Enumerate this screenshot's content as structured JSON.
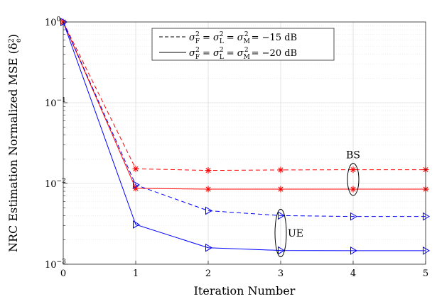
{
  "chart_data": {
    "type": "line",
    "xlabel": "Iteration Number",
    "ylabel": "NRC Estimation Normalized MSE (δ",
    "ylabel_sup": "2",
    "ylabel_sub": "e",
    "ylabel_close": ")",
    "x": [
      0,
      1,
      2,
      3,
      4,
      5
    ],
    "xlim": [
      0,
      5
    ],
    "ylim": [
      0.001,
      1
    ],
    "yscale": "log",
    "grid": true,
    "x_ticks": [
      "0",
      "1",
      "2",
      "3",
      "4",
      "5"
    ],
    "y_ticks": [
      {
        "base": "10",
        "exp": "0",
        "value": 1
      },
      {
        "base": "10",
        "exp": "−1",
        "value": 0.1
      },
      {
        "base": "10",
        "exp": "−2",
        "value": 0.01
      },
      {
        "base": "10",
        "exp": "−3",
        "value": 0.001
      }
    ],
    "series": [
      {
        "id": "bs-15",
        "group": "BS",
        "noise": "-15 dB",
        "color": "#ff0000",
        "style": "dashed",
        "marker": "star",
        "values": [
          1.0,
          0.0152,
          0.0145,
          0.0147,
          0.0148,
          0.0148
        ]
      },
      {
        "id": "bs-20",
        "group": "BS",
        "noise": "-20 dB",
        "color": "#ff0000",
        "style": "solid",
        "marker": "star",
        "values": [
          1.0,
          0.0087,
          0.0085,
          0.0085,
          0.0085,
          0.0085
        ]
      },
      {
        "id": "ue-15",
        "group": "UE",
        "noise": "-15 dB",
        "color": "#0000ff",
        "style": "dashed",
        "marker": "triangle-right",
        "values": [
          1.0,
          0.0096,
          0.0046,
          0.004,
          0.0039,
          0.0039
        ]
      },
      {
        "id": "ue-20",
        "group": "UE",
        "noise": "-20 dB",
        "color": "#0000ff",
        "style": "solid",
        "marker": "triangle-right",
        "values": [
          1.0,
          0.0031,
          0.0016,
          0.00148,
          0.00147,
          0.00147
        ]
      }
    ],
    "legend": {
      "placement": "top-right",
      "entries": [
        {
          "style": "dashed",
          "value": "= −15 dB"
        },
        {
          "style": "solid",
          "value": "= −20 dB"
        }
      ]
    },
    "annotations": [
      {
        "text": "BS",
        "target": "BS"
      },
      {
        "text": "UE",
        "target": "UE"
      }
    ]
  }
}
